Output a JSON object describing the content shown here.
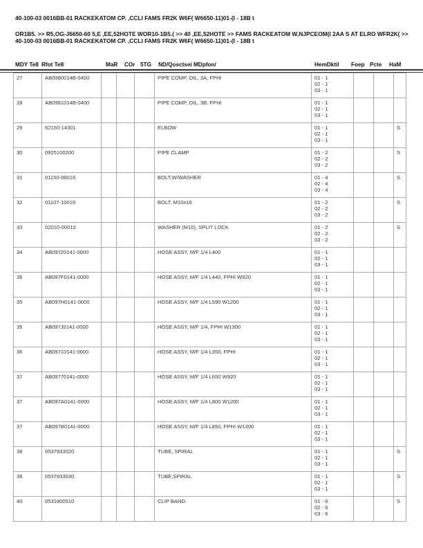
{
  "header": {
    "line1": "40-100-03 0016BB-01 RACKEKATOM CP. ,CCLI FAMS FR2K W6F( W6650-11)01-(I - 18B t",
    "line2": "OR1B5. >> R5,OG-J6650-60 5,E ,EE,52HOTE WOR10-1B5.(        >> 40 ,EE,52HOTE >> FAMS RACKEATOM W,NJPCEOM(I 2AA  S AT ELRO WFR2K( >> 40-100-03 0016BB-01 RACKEKATOM CP. ,CCLI FAMS FR2K W6F( W6650-11)01-(I - 18B t"
  },
  "columns": [
    "MDY Te8",
    "Rfot Te8",
    "MaR",
    "COr",
    "5TG",
    "ND/Qosctsei MDpfon/",
    "HemDktil",
    "Foep",
    "Pcte",
    "HaM"
  ],
  "rows": [
    {
      "no": "27",
      "part": "AB0980014B-0400",
      "desc": "PIPE COMP, OIL, 3A, FPHI",
      "qty": "01 - 1\n02 - 1\n03 - 1",
      "s": ""
    },
    {
      "no": "28",
      "part": "AB0981014B-0400",
      "desc": "PIPE COMP, OIL, 3B, FPHI",
      "qty": "01 - 1\n02 - 1\n03 - 1",
      "s": ""
    },
    {
      "no": "29",
      "part": "62150-14301",
      "desc": "ELBOW",
      "qty": "01 - 1\n02 - 1\n03 - 1",
      "s": "S"
    },
    {
      "no": "30",
      "part": "0925100200",
      "desc": "PIPE CLAMP",
      "qty": "01 - 2\n02 - 2\n03 - 2",
      "s": "S"
    },
    {
      "no": "31",
      "part": "01150-08016",
      "desc": "BOLT,W/WASHER",
      "qty": "01 - 4\n02 - 4\n03 - 4",
      "s": "S"
    },
    {
      "no": "32",
      "part": "01107-10016",
      "desc": "BOLT, M10x16",
      "qty": "01 - 2\n02 - 2\n03 - 2",
      "s": "S"
    },
    {
      "no": "33",
      "part": "02010-00010",
      "desc": "WASHER (M10), SPLIT LOCK",
      "qty": "01 - 2\n02 - 2\n03 - 2",
      "s": "S"
    },
    {
      "no": "34",
      "part": "AB09720141-0000",
      "desc": "HOSE ASSY, M/F 1/4 L400",
      "qty": "01 - 1\n02 - 1\n03 - 1",
      "s": ""
    },
    {
      "no": "35",
      "part": "AB097F0141-0000",
      "desc": "HOSE ASSY, M/F 1/4 L440, FPHI W920",
      "qty": "01 - 1\n02 - 1\n03 - 1",
      "s": ""
    },
    {
      "no": "35",
      "part": "AB097H0141-0000",
      "desc": "HOSE ASSY, M/F 1/4 L590 W1200",
      "qty": "01 - 1\n02 - 1\n03 - 1",
      "s": ""
    },
    {
      "no": "35",
      "part": "AB097J0141-0000",
      "desc": "HOSE ASSY, M/F 1/4, FPHI W1300",
      "qty": "01 - 1\n02 - 1\n03 - 1",
      "s": ""
    },
    {
      "no": "36",
      "part": "AB09710141-0000",
      "desc": "HOSE ASSY, M/F 1/4 L350, FPHI",
      "qty": "01 - 1\n02 - 1\n03 - 1",
      "s": ""
    },
    {
      "no": "37",
      "part": "AB09770141-0000",
      "desc": "HOSE ASSY, M/F 1/4 L650 W920",
      "qty": "01 - 1\n02 - 1\n03 - 1",
      "s": ""
    },
    {
      "no": "37",
      "part": "AB097A0141-0000",
      "desc": "HOSE ASSY, M/F 1/4 L800 W1200",
      "qty": "01 - 1\n02 - 1\n03 - 1",
      "s": ""
    },
    {
      "no": "37",
      "part": "AB097B0141-0000",
      "desc": "HOSE ASSY, M/F 1/4 L850, FPHI W1300",
      "qty": "01 - 1\n02 - 1\n03 - 1",
      "s": ""
    },
    {
      "no": "38",
      "part": "0537933020",
      "desc": "TUBE, SPIRAL",
      "qty": "01 - 1\n02 - 1\n03 - 1",
      "s": "S"
    },
    {
      "no": "39",
      "part": "0537933030",
      "desc": "TUBE,SPIRAL",
      "qty": "01 - 1\n02 - 1\n03 - 1",
      "s": "S"
    },
    {
      "no": "40",
      "part": "0531800510",
      "desc": "CLIP BAND",
      "qty": "01 - 6\n02 - 6\n03 - 6",
      "s": "S"
    }
  ]
}
